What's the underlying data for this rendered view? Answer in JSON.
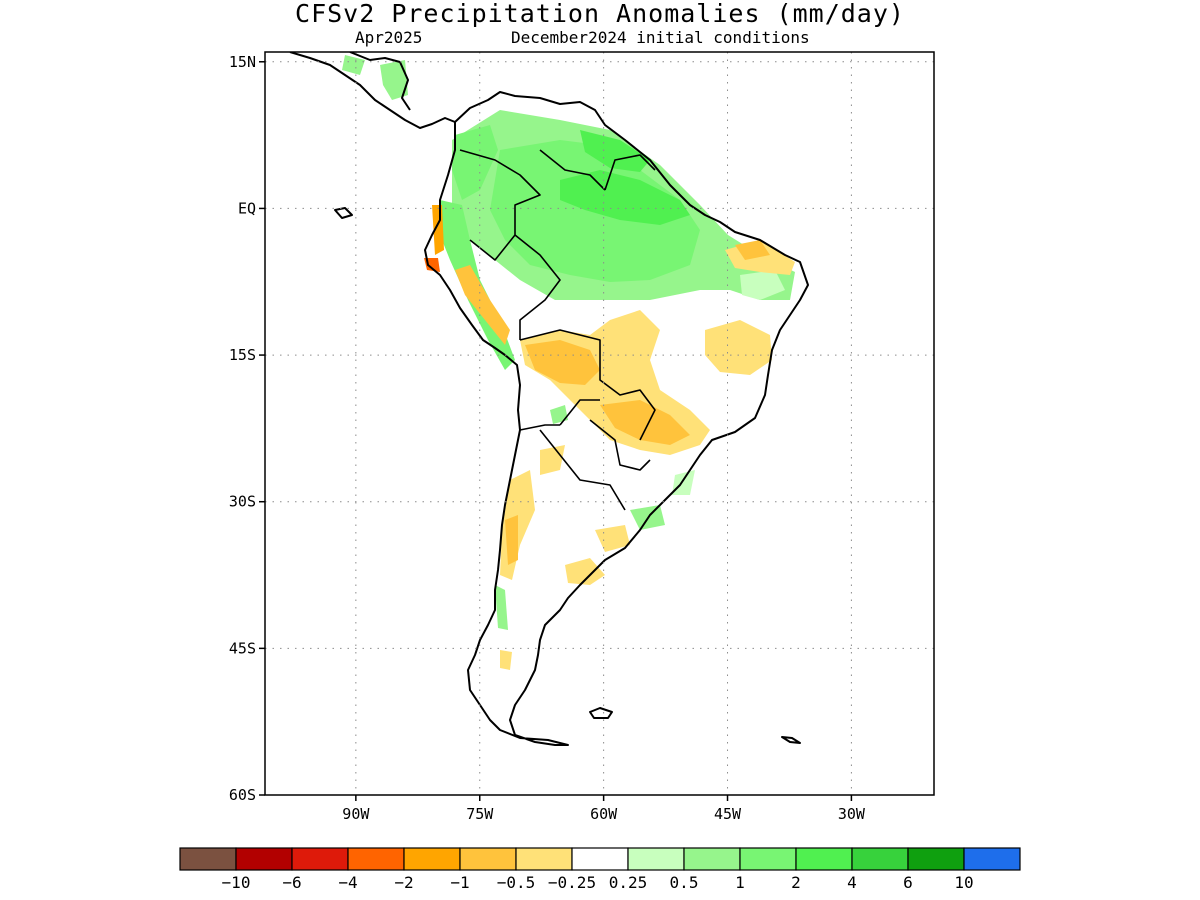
{
  "header": {
    "title": "CFSv2 Precipitation Anomalies (mm/day)",
    "valid_month": "Apr2025",
    "initial_conditions": "December2024 initial conditions"
  },
  "map": {
    "region": "South America",
    "lon_range": [
      -101,
      -20
    ],
    "lat_range": [
      -60,
      16
    ],
    "lat_ticks": [
      {
        "value": 15,
        "label": "15N"
      },
      {
        "value": 0,
        "label": "EQ"
      },
      {
        "value": -15,
        "label": "15S"
      },
      {
        "value": -30,
        "label": "30S"
      },
      {
        "value": -45,
        "label": "45S"
      },
      {
        "value": -60,
        "label": "60S"
      }
    ],
    "lon_ticks": [
      {
        "value": -90,
        "label": "90W"
      },
      {
        "value": -75,
        "label": "75W"
      },
      {
        "value": -60,
        "label": "60W"
      },
      {
        "value": -45,
        "label": "45W"
      },
      {
        "value": -30,
        "label": "30W"
      }
    ],
    "gridlines": "dotted"
  },
  "colorbar": {
    "labels": [
      "−10",
      "−6",
      "−4",
      "−2",
      "−1",
      "−0.5",
      "−0.25",
      "0.25",
      "0.5",
      "1",
      "2",
      "4",
      "6",
      "10"
    ],
    "colors": [
      "#7b5140",
      "#b20000",
      "#de1a0a",
      "#ff6400",
      "#ffa500",
      "#ffc33c",
      "#ffe178",
      "#ffffff",
      "#c8ffbe",
      "#96f58c",
      "#78f573",
      "#50f050",
      "#37d23c",
      "#0fa00f",
      "#1e6eeb"
    ]
  }
}
